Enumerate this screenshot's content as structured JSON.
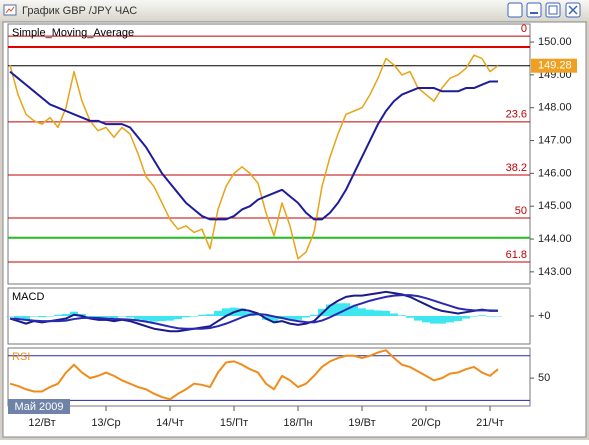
{
  "window": {
    "title": "График GBP /JPY ЧАС"
  },
  "date_label": "Май 2009",
  "chart_data": [
    {
      "type": "line",
      "categories": [
        null,
        null,
        null,
        null,
        "12/Вт",
        null,
        null,
        null,
        null,
        null,
        null,
        null,
        "13/Ср",
        null,
        null,
        null,
        null,
        null,
        null,
        null,
        "14/Чт",
        null,
        null,
        null,
        null,
        null,
        null,
        null,
        "15/Пт",
        null,
        null,
        null,
        null,
        null,
        null,
        null,
        "18/Пн",
        null,
        null,
        null,
        null,
        null,
        null,
        null,
        "19/Вт",
        null,
        null,
        null,
        null,
        null,
        null,
        null,
        "20/Ср",
        null,
        null,
        null,
        null,
        null,
        null,
        null,
        "21/Чт",
        null
      ],
      "series": [
        {
          "color": "#e8a317",
          "values": [
            149.3,
            148.4,
            147.8,
            147.6,
            147.5,
            147.7,
            147.4,
            148.0,
            149.1,
            148.2,
            147.6,
            147.3,
            147.4,
            147.1,
            147.4,
            147.2,
            146.6,
            145.9,
            145.6,
            145.1,
            144.6,
            144.3,
            144.4,
            144.2,
            144.3,
            143.7,
            144.9,
            145.6,
            146.0,
            146.2,
            146.0,
            145.7,
            144.8,
            144.1,
            145.1,
            144.4,
            143.4,
            143.6,
            144.2,
            145.6,
            146.5,
            147.2,
            147.8,
            147.9,
            148.0,
            148.4,
            148.9,
            149.5,
            149.3,
            149.0,
            149.1,
            148.6,
            148.4,
            148.2,
            148.6,
            148.9,
            149.0,
            149.2,
            149.6,
            149.5,
            149.1,
            149.28
          ]
        },
        {
          "name": "Simple_Moving_Average",
          "color": "#1c1c9c",
          "values": [
            149.1,
            148.9,
            148.7,
            148.5,
            148.3,
            148.1,
            148.0,
            147.9,
            147.8,
            147.7,
            147.6,
            147.6,
            147.5,
            147.5,
            147.5,
            147.4,
            147.1,
            146.8,
            146.4,
            146.0,
            145.7,
            145.4,
            145.1,
            144.9,
            144.7,
            144.6,
            144.6,
            144.6,
            144.7,
            144.9,
            145.0,
            145.2,
            145.3,
            145.4,
            145.5,
            145.3,
            145.1,
            144.8,
            144.6,
            144.6,
            144.8,
            145.1,
            145.5,
            146.0,
            146.5,
            147.0,
            147.5,
            147.9,
            148.2,
            148.4,
            148.5,
            148.6,
            148.6,
            148.6,
            148.5,
            148.5,
            148.5,
            148.6,
            148.6,
            148.7,
            148.8,
            148.8
          ]
        }
      ],
      "ylim": [
        142.63,
        150.55
      ],
      "yticks": [
        {
          "value": 143,
          "label": "143.00"
        },
        {
          "value": 144,
          "label": "144.00"
        },
        {
          "value": 145,
          "label": "145.00"
        },
        {
          "value": 146,
          "label": "146.00"
        },
        {
          "value": 147,
          "label": "147.00"
        },
        {
          "value": 148,
          "label": "148.00"
        },
        {
          "value": 149,
          "label": "149.00"
        },
        {
          "value": 150,
          "label": "150.00"
        }
      ],
      "levels": [
        {
          "value": 150.18,
          "label": "0"
        },
        {
          "value": 147.57,
          "label": "23.6"
        },
        {
          "value": 145.95,
          "label": "38.2"
        },
        {
          "value": 144.64,
          "label": "50"
        },
        {
          "value": 143.3,
          "label": "61.8"
        }
      ],
      "level_color": "#c00000",
      "lines": [
        {
          "value": 149.85,
          "color": "#e00000"
        },
        {
          "value": 144.04,
          "color": "#22bb22"
        }
      ],
      "last_price": {
        "value": 149.28,
        "label": "149.28",
        "color": "#f0a020"
      }
    },
    {
      "type": "line",
      "series": [
        {
          "type": "bar",
          "color": "#3ee6f0",
          "values": [
            0,
            -0.08,
            -0.15,
            -0.02,
            -0.05,
            0,
            0.05,
            0.08,
            0.17,
            0.08,
            -0.03,
            -0.07,
            -0.05,
            -0.08,
            -0.02,
            -0.06,
            -0.13,
            -0.18,
            -0.22,
            -0.2,
            -0.18,
            -0.12,
            -0.05,
            0,
            0.05,
            0.07,
            0.2,
            0.3,
            0.33,
            0.3,
            0.15,
            0.02,
            -0.15,
            -0.23,
            -0.12,
            -0.15,
            -0.15,
            -0.06,
            0.05,
            0.28,
            0.45,
            0.5,
            0.5,
            0.4,
            0.3,
            0.25,
            0.22,
            0.2,
            0.1,
            0.03,
            -0.07,
            -0.18,
            -0.25,
            -0.3,
            -0.3,
            -0.25,
            -0.2,
            -0.1,
            -0.02,
            0.03,
            -0.02,
            -0.01
          ]
        },
        {
          "name": "MACD",
          "color": "#1a1a8a",
          "values": [
            -0.1,
            -0.2,
            -0.3,
            -0.2,
            -0.25,
            -0.2,
            -0.15,
            -0.1,
            0.05,
            0,
            -0.1,
            -0.15,
            -0.15,
            -0.2,
            -0.15,
            -0.2,
            -0.3,
            -0.4,
            -0.5,
            -0.55,
            -0.6,
            -0.6,
            -0.55,
            -0.5,
            -0.45,
            -0.4,
            -0.2,
            0,
            0.15,
            0.25,
            0.2,
            0.1,
            -0.1,
            -0.25,
            -0.2,
            -0.3,
            -0.35,
            -0.3,
            -0.2,
            0.1,
            0.4,
            0.6,
            0.75,
            0.8,
            0.8,
            0.85,
            0.9,
            0.95,
            0.9,
            0.85,
            0.75,
            0.6,
            0.45,
            0.3,
            0.2,
            0.15,
            0.1,
            0.15,
            0.2,
            0.25,
            0.2,
            0.2
          ]
        },
        {
          "color": "#2a2ab0",
          "values": [
            -0.1,
            -0.12,
            -0.15,
            -0.18,
            -0.2,
            -0.2,
            -0.2,
            -0.18,
            -0.12,
            -0.08,
            -0.07,
            -0.08,
            -0.1,
            -0.12,
            -0.13,
            -0.14,
            -0.17,
            -0.22,
            -0.28,
            -0.35,
            -0.42,
            -0.48,
            -0.5,
            -0.5,
            -0.5,
            -0.47,
            -0.4,
            -0.3,
            -0.18,
            -0.05,
            0.05,
            0.08,
            0.05,
            -0.02,
            -0.08,
            -0.15,
            -0.2,
            -0.24,
            -0.25,
            -0.18,
            -0.05,
            0.1,
            0.25,
            0.4,
            0.5,
            0.6,
            0.68,
            0.75,
            0.8,
            0.82,
            0.82,
            0.78,
            0.7,
            0.6,
            0.5,
            0.4,
            0.3,
            0.25,
            0.22,
            0.22,
            0.22,
            0.21
          ]
        }
      ],
      "ylim": [
        -1.1,
        1.1
      ],
      "yticks": [
        {
          "value": 0,
          "label": "+0"
        }
      ]
    },
    {
      "type": "line",
      "series": [
        {
          "name": "RSI",
          "color": "#f08c1a",
          "values": [
            45,
            43,
            40,
            38,
            38,
            42,
            45,
            55,
            62,
            55,
            50,
            52,
            55,
            52,
            48,
            45,
            42,
            40,
            36,
            33,
            31,
            36,
            40,
            45,
            44,
            42,
            55,
            64,
            65,
            62,
            58,
            55,
            45,
            40,
            52,
            48,
            42,
            45,
            52,
            60,
            65,
            68,
            70,
            70,
            68,
            70,
            73,
            75,
            68,
            62,
            60,
            56,
            52,
            48,
            50,
            54,
            55,
            58,
            60,
            55,
            52,
            58
          ]
        }
      ],
      "ylim": [
        25,
        77
      ],
      "yticks": [
        50
      ],
      "levels": [
        30,
        70
      ],
      "level_color": "#2a2a9a"
    }
  ]
}
